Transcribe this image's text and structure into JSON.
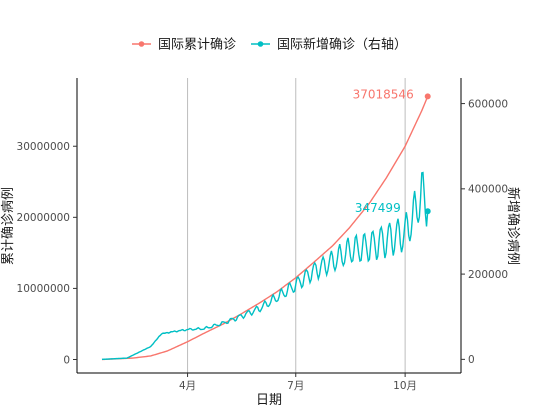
{
  "chart_data": {
    "type": "line",
    "title": "",
    "xlabel": "日期",
    "ylabel_left": "累计确诊病例",
    "ylabel_right": "新增确诊病例",
    "x_ticks": [
      "4月",
      "7月",
      "10月"
    ],
    "y_left_ticks": [
      "0",
      "10000000",
      "20000000",
      "30000000"
    ],
    "y_left_range": [
      -1900000,
      39600000
    ],
    "y_right_ticks": [
      "0",
      "200000",
      "400000",
      "600000"
    ],
    "y_right_range": [
      -32000,
      660000
    ],
    "x_range_days_from_jan1": [
      -2,
      321
    ],
    "grid": "vertical major gridlines only",
    "legend_position": "top",
    "series": [
      {
        "name": "国际累计确诊",
        "axis": "left",
        "color": "#F8766D",
        "end_label": "37018546",
        "end_value": 37018546,
        "points_estimated": [
          [
            "2020-01-20",
            0
          ],
          [
            "2020-02-15",
            200000
          ],
          [
            "2020-03-01",
            500000
          ],
          [
            "2020-03-15",
            1200000
          ],
          [
            "2020-04-01",
            2500000
          ],
          [
            "2020-04-15",
            3700000
          ],
          [
            "2020-05-01",
            5000000
          ],
          [
            "2020-05-15",
            6300000
          ],
          [
            "2020-06-01",
            8000000
          ],
          [
            "2020-06-15",
            9500000
          ],
          [
            "2020-07-01",
            11500000
          ],
          [
            "2020-07-15",
            13500000
          ],
          [
            "2020-08-01",
            16000000
          ],
          [
            "2020-08-15",
            18500000
          ],
          [
            "2020-09-01",
            22000000
          ],
          [
            "2020-09-15",
            25500000
          ],
          [
            "2020-10-01",
            30000000
          ],
          [
            "2020-10-15",
            35000000
          ],
          [
            "2020-10-20",
            37018546
          ]
        ]
      },
      {
        "name": "国际新增确诊（右轴）",
        "axis": "right",
        "color": "#00BFC4",
        "end_label": "347499",
        "end_value": 347499,
        "points_estimated": [
          [
            "2020-01-20",
            0
          ],
          [
            "2020-02-10",
            3000
          ],
          [
            "2020-03-01",
            30000
          ],
          [
            "2020-03-10",
            60000
          ],
          [
            "2020-03-20",
            65000
          ],
          [
            "2020-04-01",
            70000
          ],
          [
            "2020-04-15",
            72000
          ],
          [
            "2020-05-01",
            85000
          ],
          [
            "2020-05-15",
            100000
          ],
          [
            "2020-06-01",
            120000
          ],
          [
            "2020-06-15",
            145000
          ],
          [
            "2020-07-01",
            175000
          ],
          [
            "2020-07-15",
            205000
          ],
          [
            "2020-08-01",
            230000
          ],
          [
            "2020-08-15",
            255000
          ],
          [
            "2020-09-01",
            265000
          ],
          [
            "2020-09-15",
            280000
          ],
          [
            "2020-10-01",
            295000
          ],
          [
            "2020-10-10",
            350000
          ],
          [
            "2020-10-15",
            392000
          ],
          [
            "2020-10-20",
            347499
          ]
        ]
      }
    ]
  }
}
